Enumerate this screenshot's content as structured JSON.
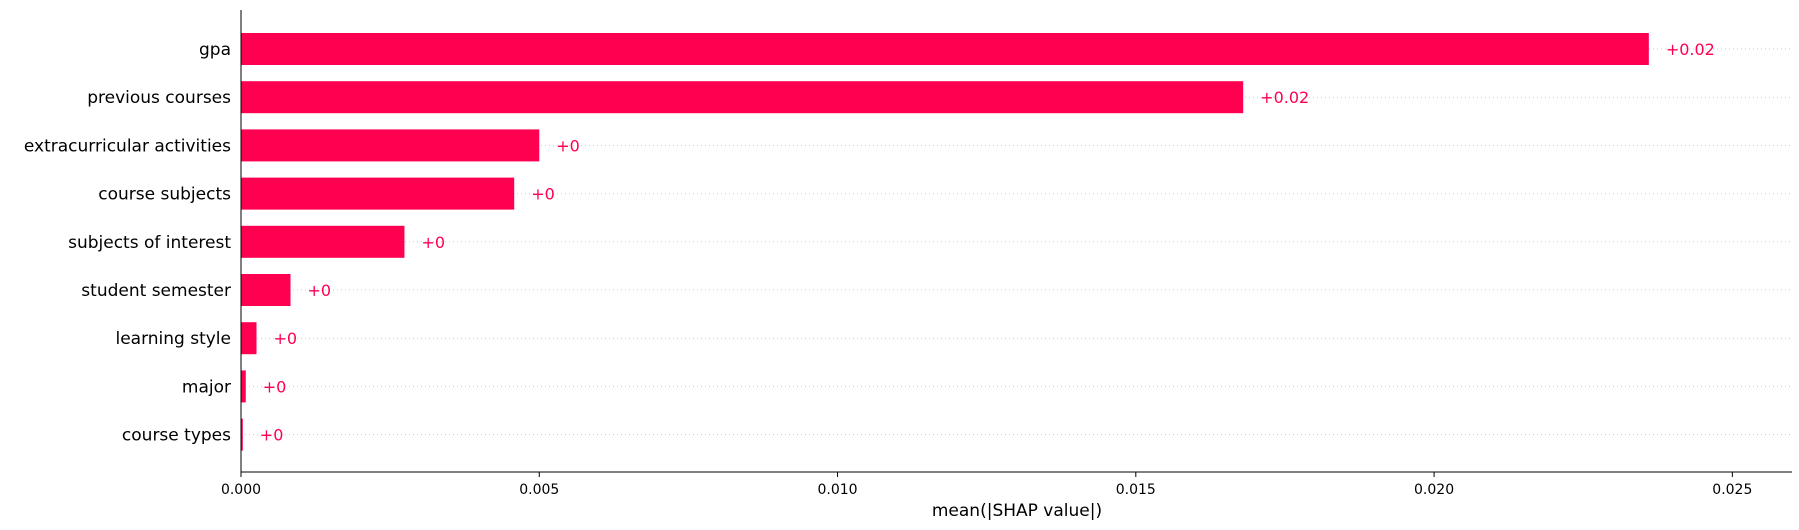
{
  "chart_data": {
    "type": "bar",
    "orientation": "horizontal",
    "categories": [
      "gpa",
      "previous courses",
      "extracurricular activities",
      "course subjects",
      "subjects of interest",
      "student semester",
      "learning style",
      "major",
      "course types"
    ],
    "values": [
      0.0236,
      0.0168,
      0.005,
      0.00458,
      0.00274,
      0.00083,
      0.00026,
      8e-05,
      3e-05
    ],
    "data_labels": [
      "+0.02",
      "+0.02",
      "+0",
      "+0",
      "+0",
      "+0",
      "+0",
      "+0",
      "+0"
    ],
    "title": "",
    "xlabel": "mean(|SHAP value|)",
    "ylabel": "",
    "xlim": [
      0,
      0.026
    ],
    "xticks": [
      0.0,
      0.005,
      0.01,
      0.015,
      0.02,
      0.025
    ],
    "xtick_labels": [
      "0.000",
      "0.005",
      "0.010",
      "0.015",
      "0.020",
      "0.025"
    ],
    "grid": "horizontal dotted",
    "bar_color": "#ff0051",
    "label_color": "#ff0051"
  }
}
